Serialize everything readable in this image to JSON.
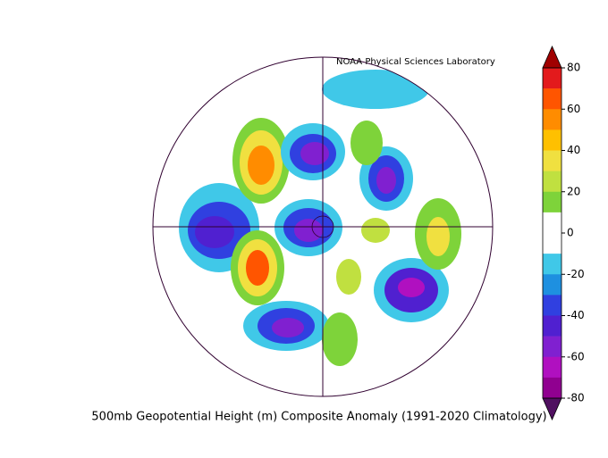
{
  "credit": "NOAA Physical Sciences Laboratory",
  "caption": "500mb Geopotential Height (m) Composite Anomaly (1991-2020 Climatology)",
  "colorbar": {
    "ticks": [
      80,
      60,
      40,
      20,
      0,
      -20,
      -40,
      -60,
      -80
    ],
    "colors": [
      "#e31a1c",
      "#ff5500",
      "#ff8c00",
      "#ffc000",
      "#f0e040",
      "#c0e040",
      "#7ed33a",
      "#ffffff",
      "#ffffff",
      "#40c8e8",
      "#1e90e0",
      "#3040e0",
      "#5020d0",
      "#8020d0",
      "#b010c0",
      "#900090"
    ],
    "over": "#a00000",
    "under": "#501060"
  }
}
